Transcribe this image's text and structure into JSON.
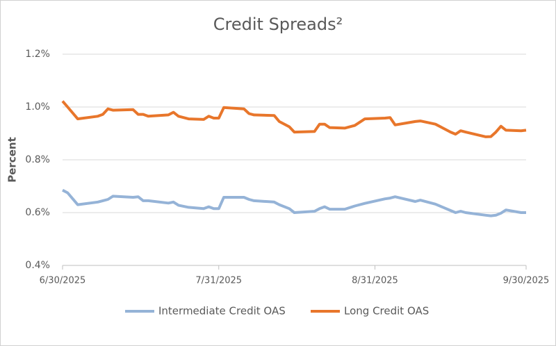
{
  "chart_data": {
    "type": "line",
    "title": "Credit Spreads²",
    "y_label": "Percent",
    "x": [
      "6/30/2025",
      "7/1/2025",
      "7/3/2025",
      "7/7/2025",
      "7/8/2025",
      "7/9/2025",
      "7/10/2025",
      "7/14/2025",
      "7/15/2025",
      "7/16/2025",
      "7/17/2025",
      "7/21/2025",
      "7/22/2025",
      "7/23/2025",
      "7/25/2025",
      "7/28/2025",
      "7/29/2025",
      "7/30/2025",
      "7/31/2025",
      "8/1/2025",
      "8/5/2025",
      "8/6/2025",
      "8/7/2025",
      "8/11/2025",
      "8/12/2025",
      "8/14/2025",
      "8/15/2025",
      "8/19/2025",
      "8/20/2025",
      "8/21/2025",
      "8/22/2025",
      "8/25/2025",
      "8/27/2025",
      "8/29/2025",
      "9/2/2025",
      "9/3/2025",
      "9/4/2025",
      "9/8/2025",
      "9/9/2025",
      "9/12/2025",
      "9/15/2025",
      "9/16/2025",
      "9/17/2025",
      "9/18/2025",
      "9/22/2025",
      "9/23/2025",
      "9/24/2025",
      "9/25/2025",
      "9/26/2025",
      "9/29/2025",
      "9/30/2025"
    ],
    "series": [
      {
        "name": "Intermediate Credit OAS",
        "color": "#95b3d7",
        "values": [
          0.685,
          0.675,
          0.63,
          0.64,
          0.645,
          0.65,
          0.662,
          0.658,
          0.66,
          0.645,
          0.645,
          0.636,
          0.64,
          0.628,
          0.62,
          0.615,
          0.622,
          0.615,
          0.615,
          0.658,
          0.658,
          0.65,
          0.645,
          0.64,
          0.63,
          0.615,
          0.6,
          0.605,
          0.615,
          0.622,
          0.613,
          0.613,
          0.625,
          0.635,
          0.652,
          0.655,
          0.66,
          0.642,
          0.647,
          0.632,
          0.608,
          0.6,
          0.605,
          0.6,
          0.59,
          0.588,
          0.59,
          0.598,
          0.61,
          0.6,
          0.6
        ]
      },
      {
        "name": "Long Credit OAS",
        "color": "#e8762b",
        "values": [
          1.022,
          1.0,
          0.955,
          0.965,
          0.972,
          0.993,
          0.988,
          0.99,
          0.972,
          0.972,
          0.965,
          0.97,
          0.98,
          0.965,
          0.955,
          0.953,
          0.965,
          0.958,
          0.958,
          0.998,
          0.993,
          0.975,
          0.97,
          0.968,
          0.945,
          0.925,
          0.905,
          0.907,
          0.935,
          0.935,
          0.922,
          0.92,
          0.93,
          0.955,
          0.958,
          0.96,
          0.932,
          0.945,
          0.947,
          0.935,
          0.905,
          0.897,
          0.91,
          0.905,
          0.887,
          0.888,
          0.905,
          0.927,
          0.912,
          0.91,
          0.912
        ]
      }
    ],
    "xlim": [
      "6/30/2025",
      "9/30/2025"
    ],
    "xticks": [
      "6/30/2025",
      "7/31/2025",
      "8/31/2025",
      "9/30/2025"
    ],
    "ylim": [
      0.4,
      1.2
    ],
    "yticks": [
      {
        "value": 0.4,
        "label": "0.4%"
      },
      {
        "value": 0.6,
        "label": "0.6%"
      },
      {
        "value": 0.8,
        "label": "0.8%"
      },
      {
        "value": 1.0,
        "label": "1.0%"
      },
      {
        "value": 1.2,
        "label": "1.2%"
      }
    ],
    "grid": true,
    "legend": "bottom"
  }
}
